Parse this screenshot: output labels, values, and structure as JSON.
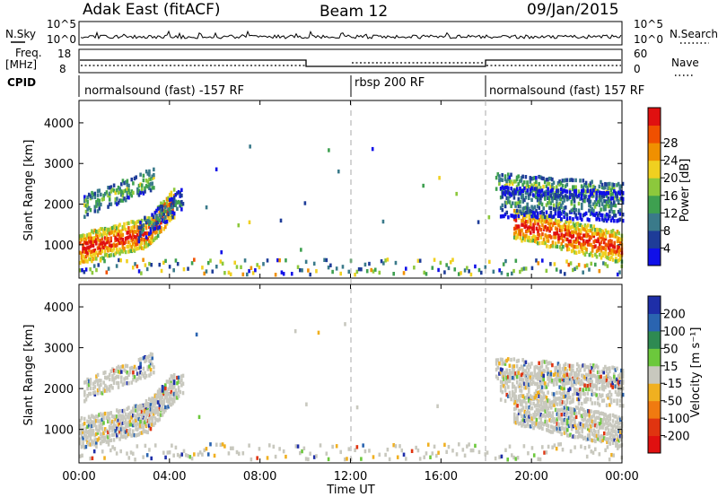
{
  "header": {
    "station": "Adak East (fitACF)",
    "beam": "Beam 12",
    "date": "09/Jan/2015"
  },
  "strip": {
    "nsky_label": "N.Sky",
    "nsearch_label": "N.Search",
    "nsky_ticks": [
      "10^5",
      "10^0"
    ],
    "nsearch_ticks": [
      "10^5",
      "10^0"
    ],
    "freq_label": "Freq.",
    "freq_unit": "[MHz]",
    "freq_ticks": [
      "18",
      "8"
    ],
    "nave_label": "Nave",
    "nave_ticks": [
      "60",
      "0"
    ],
    "cpid_label": "CPID",
    "cpid_segments": [
      {
        "label": "normalsound (fast) -157 RF"
      },
      {
        "label": "rbsp 200 RF"
      },
      {
        "label": "normalsound (fast) 157 RF"
      }
    ]
  },
  "chart_data": [
    {
      "type": "heatmap",
      "title": "",
      "xlabel": "",
      "ylabel": "Slant Range [km]",
      "ylim": [
        180,
        4550
      ],
      "yticks": [
        "1000",
        "2000",
        "3000",
        "4000"
      ],
      "colorbar_label": "Power [dB]",
      "colorbar_ticks": [
        "4",
        "8",
        "12",
        "16",
        "20",
        "24",
        "28"
      ],
      "colorbar_colors": [
        "#1010e8",
        "#1e3c98",
        "#3a7a8a",
        "#3ea050",
        "#8cc83c",
        "#f0d020",
        "#f09000",
        "#f05000",
        "#e01010"
      ],
      "grid": false
    },
    {
      "type": "heatmap",
      "title": "",
      "xlabel": "Time UT",
      "ylabel": "Slant Range [km]",
      "ylim": [
        180,
        4550
      ],
      "yticks": [
        "1000",
        "2000",
        "3000",
        "4000"
      ],
      "xticks": [
        "00:00",
        "04:00",
        "08:00",
        "12:00",
        "16:00",
        "20:00",
        "00:00"
      ],
      "colorbar_label": "Velocity [m s⁻¹]",
      "colorbar_ticks": [
        "200",
        "100",
        "50",
        "15",
        "-15",
        "-50",
        "-100",
        "-200"
      ],
      "colorbar_colors": [
        "#1e2ea8",
        "#2a64b0",
        "#2e8a52",
        "#6cc83c",
        "#c8c8be",
        "#f0b020",
        "#f07a10",
        "#e03410",
        "#e01010"
      ],
      "grid": false
    }
  ]
}
